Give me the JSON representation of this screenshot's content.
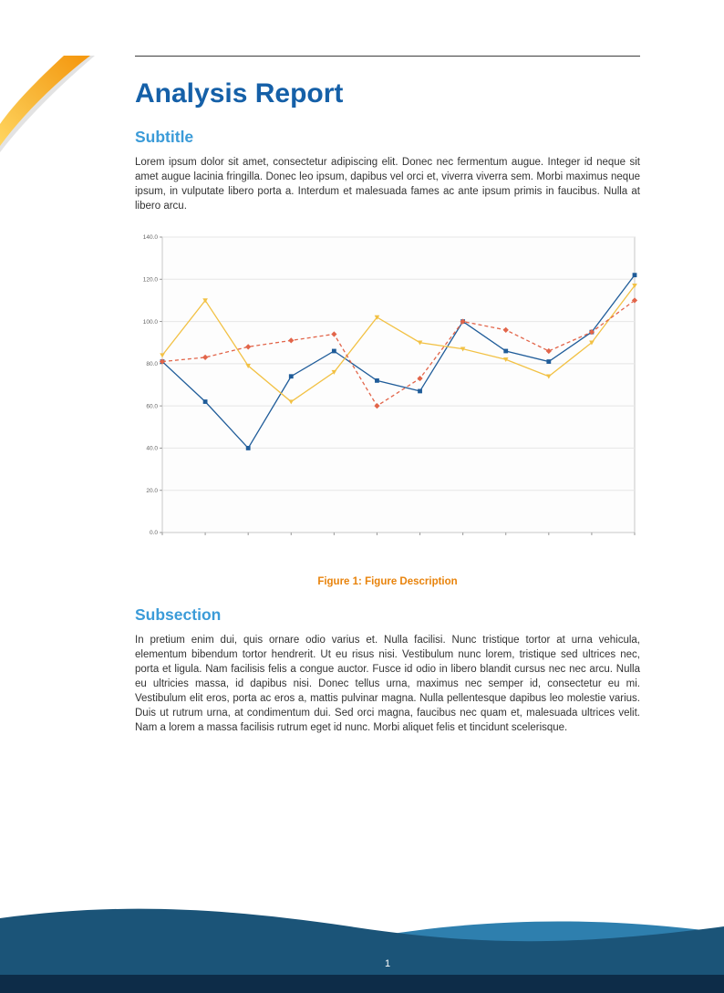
{
  "document": {
    "title": "Analysis Report",
    "page_number": "1"
  },
  "section1": {
    "heading": "Subtitle",
    "body": "Lorem ipsum dolor sit amet, consectetur adipiscing elit. Donec nec fermentum augue. Integer id neque sit amet augue lacinia fringilla. Donec leo ipsum, dapibus vel orci et, viverra viverra sem. Morbi maximus neque ipsum, in vulputate libero porta a. Interdum et malesuada fames ac ante ipsum primis in faucibus. Nulla at libero arcu."
  },
  "figure": {
    "caption_label": "Figure 1:",
    "caption_text": "Figure Description"
  },
  "section2": {
    "heading": "Subsection",
    "body": "In pretium enim dui, quis ornare odio varius et. Nulla facilisi. Nunc tristique tortor at urna vehicula, elementum bibendum tortor hendrerit. Ut eu risus nisi. Vestibulum nunc lorem, tristique sed ultrices nec, porta et ligula. Nam facilisis felis a congue auctor. Fusce id odio in libero blandit cursus nec nec arcu. Nulla eu ultricies massa, id dapibus nisi. Donec tellus urna, maximus nec semper id, consectetur eu mi. Vestibulum elit eros, porta ac eros a, mattis pulvinar magna. Nulla pellentesque dapibus leo molestie varius. Duis ut rutrum urna, at condimentum dui. Sed orci magna, faucibus nec quam et, malesuada ultrices velit. Nam a lorem a massa facilisis rutrum eget id nunc. Morbi aliquet felis et tincidunt scelerisque."
  },
  "colors": {
    "title": "#1560a8",
    "heading": "#3b9bd8",
    "caption": "#e8830c",
    "body_text": "#333333",
    "rule": "#3d3d3d",
    "footer_wave": "#1b5478",
    "footer_wave_light": "#2e7fae",
    "footer_bar": "#0d2c48",
    "corner_orange": "#f5a21b",
    "corner_yellow": "#ffd45e",
    "series_blue": "#1f5c99",
    "series_yellow": "#f2c144",
    "series_red": "#e2654a"
  },
  "chart_data": {
    "type": "line",
    "title": "",
    "xlabel": "",
    "ylabel": "",
    "x": [
      0,
      1,
      2,
      3,
      4,
      5,
      6,
      7,
      8,
      9,
      10,
      11
    ],
    "ylim": [
      0,
      140
    ],
    "yticks": [
      0,
      20,
      40,
      60,
      80,
      100,
      120,
      140
    ],
    "grid": true,
    "legend": "none",
    "series": [
      {
        "name": "blue-solid-squares",
        "color": "#1f5c99",
        "marker": "square",
        "dash": null,
        "values": [
          81,
          62,
          40,
          74,
          86,
          72,
          67,
          100,
          86,
          81,
          95,
          122
        ]
      },
      {
        "name": "yellow-solid-triangles",
        "color": "#f2c144",
        "marker": "triangle-down",
        "dash": null,
        "values": [
          84,
          110,
          79,
          62,
          76,
          102,
          90,
          87,
          82,
          74,
          90,
          117
        ]
      },
      {
        "name": "red-dashed-diamonds",
        "color": "#e2654a",
        "marker": "diamond",
        "dash": "4 3",
        "values": [
          81,
          83,
          88,
          91,
          94,
          60,
          73,
          100,
          96,
          86,
          95,
          110
        ]
      }
    ]
  }
}
